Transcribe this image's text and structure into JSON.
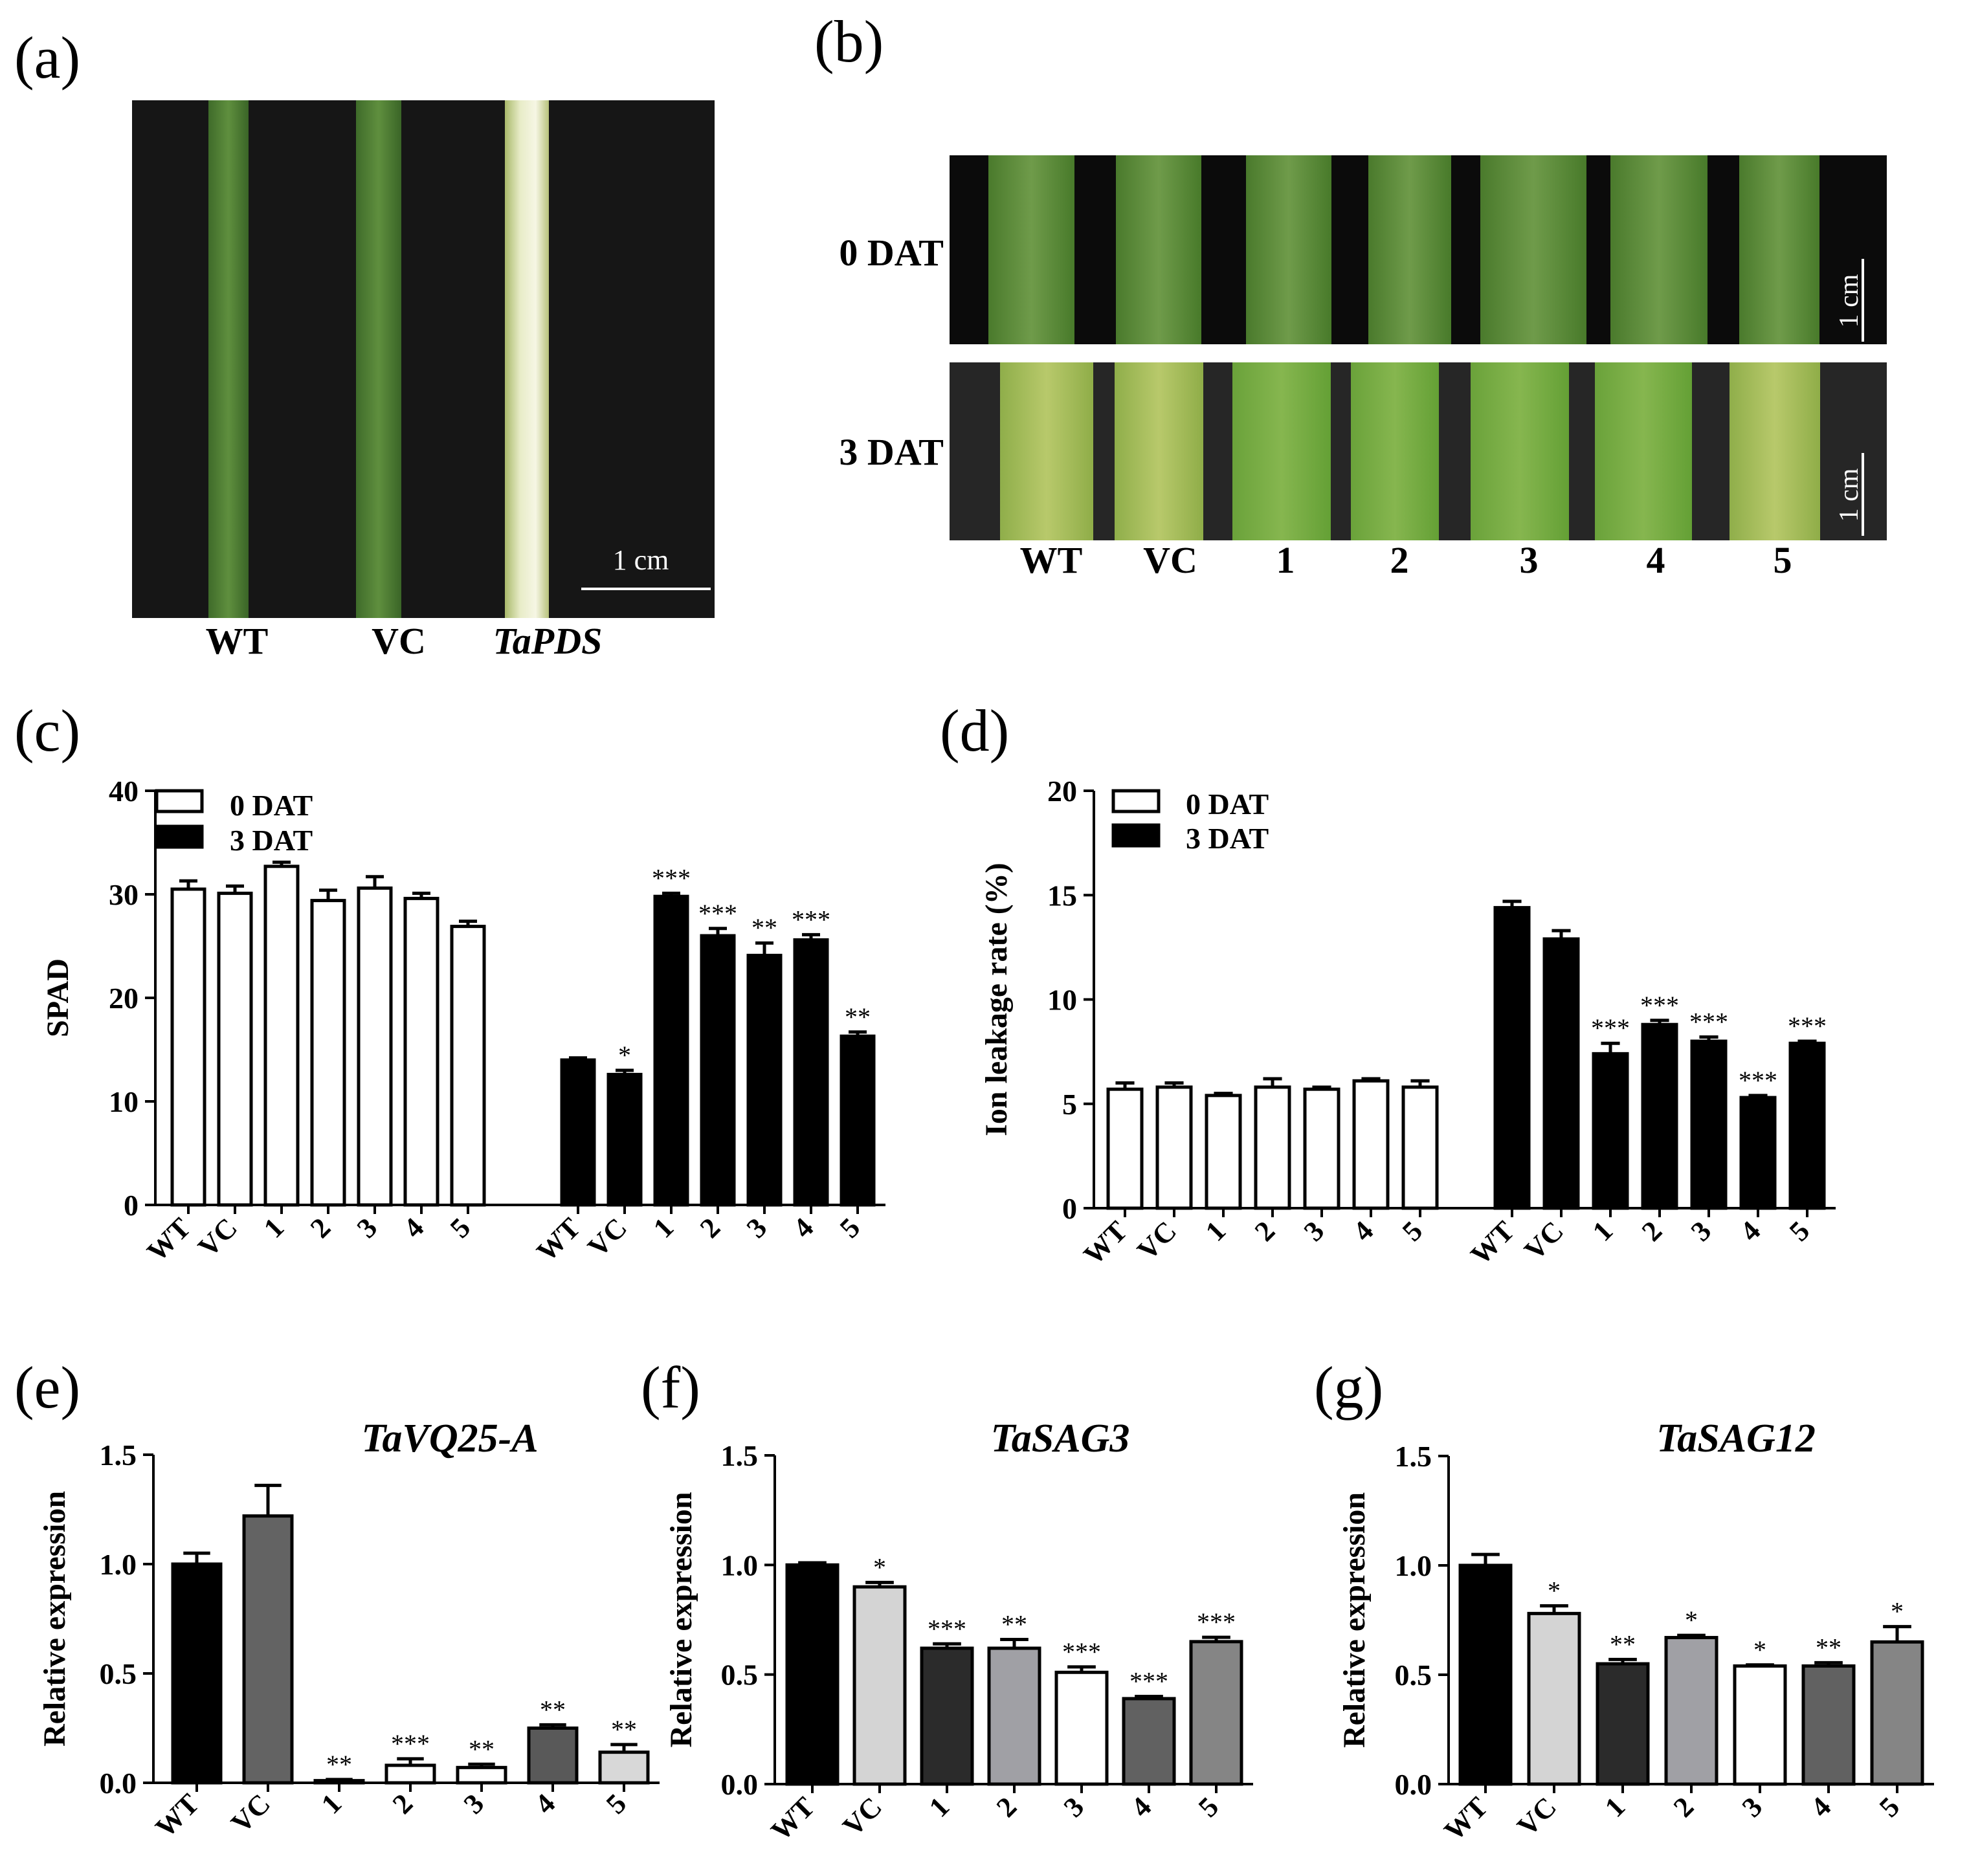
{
  "panels": {
    "a": {
      "label": "(a)",
      "labels": [
        "WT",
        "VC",
        "TaPDS"
      ],
      "scale_bar": "1 cm"
    },
    "b": {
      "label": "(b)",
      "rows": [
        "0 DAT",
        "3 DAT"
      ],
      "columns": [
        "WT",
        "VC",
        "1",
        "2",
        "3",
        "4",
        "5"
      ],
      "scale_bar": "1 cm"
    }
  },
  "chart_data": [
    {
      "id": "c",
      "panel_label": "(c)",
      "type": "bar",
      "ylabel": "SPAD",
      "ylim": [
        0,
        40
      ],
      "yticks": [
        0,
        10,
        20,
        30,
        40
      ],
      "categories": [
        "WT",
        "VC",
        "1",
        "2",
        "3",
        "4",
        "5"
      ],
      "legend": [
        "0 DAT",
        "3 DAT"
      ],
      "series": [
        {
          "name": "0 DAT",
          "style": "white",
          "values": [
            30.5,
            30.1,
            32.7,
            29.4,
            30.6,
            29.6,
            26.9
          ],
          "errors": [
            0.8,
            0.7,
            0.4,
            1.0,
            1.1,
            0.5,
            0.5
          ],
          "sig": [
            "",
            "",
            "",
            "",
            "",
            "",
            ""
          ]
        },
        {
          "name": "3 DAT",
          "style": "black",
          "values": [
            14.0,
            12.6,
            29.8,
            26.0,
            24.1,
            25.6,
            16.3
          ],
          "errors": [
            0.2,
            0.4,
            0.3,
            0.7,
            1.2,
            0.5,
            0.4
          ],
          "sig": [
            "",
            "*",
            "***",
            "***",
            "**",
            "***",
            "**"
          ]
        }
      ]
    },
    {
      "id": "d",
      "panel_label": "(d)",
      "type": "bar",
      "ylabel": "Ion  leakage rate (%)",
      "ylim": [
        0,
        20
      ],
      "yticks": [
        0,
        5,
        10,
        15,
        20
      ],
      "categories": [
        "WT",
        "VC",
        "1",
        "2",
        "3",
        "4",
        "5"
      ],
      "legend": [
        "0 DAT",
        "3 DAT"
      ],
      "series": [
        {
          "name": "0 DAT",
          "style": "white",
          "values": [
            5.7,
            5.8,
            5.4,
            5.8,
            5.7,
            6.1,
            5.8
          ],
          "errors": [
            0.3,
            0.2,
            0.1,
            0.4,
            0.1,
            0.1,
            0.3
          ],
          "sig": [
            "",
            "",
            "",
            "",
            "",
            "",
            ""
          ]
        },
        {
          "name": "3 DAT",
          "style": "black",
          "values": [
            14.4,
            12.9,
            7.4,
            8.8,
            8.0,
            5.3,
            7.9
          ],
          "errors": [
            0.3,
            0.4,
            0.5,
            0.2,
            0.2,
            0.1,
            0.1
          ],
          "sig": [
            "",
            "",
            "***",
            "***",
            "***",
            "***",
            "***"
          ]
        }
      ]
    },
    {
      "id": "e",
      "panel_label": "(e)",
      "type": "bar",
      "title": "TaVQ25-A",
      "ylabel": "Relative expression",
      "ylim": [
        0,
        1.5
      ],
      "yticks": [
        "0.0",
        "0.5",
        "1.0",
        "1.5"
      ],
      "categories": [
        "WT",
        "VC",
        "1",
        "2",
        "3",
        "4",
        "5"
      ],
      "values": [
        1.0,
        1.22,
        0.01,
        0.08,
        0.07,
        0.25,
        0.14
      ],
      "errors": [
        0.05,
        0.14,
        0.005,
        0.03,
        0.015,
        0.015,
        0.035
      ],
      "colors": [
        "#000000",
        "#636363",
        "#2e2e2e",
        "#ffffff",
        "#ffffff",
        "#595959",
        "#d8d8d8"
      ],
      "sig": [
        "",
        "",
        "**",
        "***",
        "**",
        "**",
        "**"
      ]
    },
    {
      "id": "f",
      "panel_label": "(f)",
      "type": "bar",
      "title": "TaSAG3",
      "ylabel": "Relative expression",
      "ylim": [
        0,
        1.5
      ],
      "yticks": [
        "0.0",
        "0.5",
        "1.0",
        "1.5"
      ],
      "categories": [
        "WT",
        "VC",
        "1",
        "2",
        "3",
        "4",
        "5"
      ],
      "values": [
        1.0,
        0.9,
        0.62,
        0.62,
        0.51,
        0.39,
        0.65
      ],
      "errors": [
        0.01,
        0.02,
        0.02,
        0.04,
        0.025,
        0.01,
        0.02
      ],
      "colors": [
        "#000000",
        "#d4d4d4",
        "#2b2b2b",
        "#a0a0a5",
        "#ffffff",
        "#616161",
        "#858585"
      ],
      "sig": [
        "",
        "*",
        "***",
        "**",
        "***",
        "***",
        "***"
      ]
    },
    {
      "id": "g",
      "panel_label": "(g)",
      "type": "bar",
      "title": "TaSAG12",
      "ylabel": "Relative expression",
      "ylim": [
        0,
        1.5
      ],
      "yticks": [
        "0.0",
        "0.5",
        "1.0",
        "1.5"
      ],
      "categories": [
        "WT",
        "VC",
        "1",
        "2",
        "3",
        "4",
        "5"
      ],
      "values": [
        1.0,
        0.78,
        0.55,
        0.67,
        0.54,
        0.54,
        0.65
      ],
      "errors": [
        0.05,
        0.035,
        0.02,
        0.01,
        0.005,
        0.015,
        0.07
      ],
      "colors": [
        "#000000",
        "#d4d4d4",
        "#2b2b2b",
        "#a0a0a5",
        "#ffffff",
        "#616161",
        "#858585"
      ],
      "sig": [
        "",
        "*",
        "**",
        "*",
        "*",
        "**",
        "*"
      ]
    }
  ]
}
